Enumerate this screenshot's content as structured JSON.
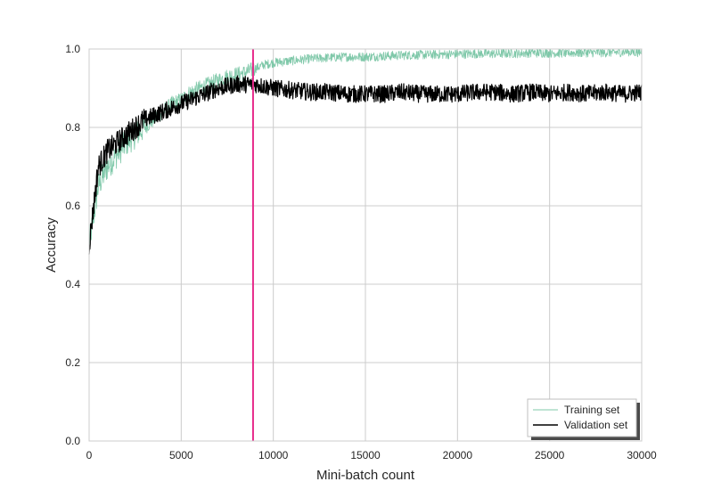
{
  "chart_data": {
    "type": "line",
    "title": "",
    "xlabel": "Mini-batch count",
    "ylabel": "Accuracy",
    "xlim": [
      0,
      30000
    ],
    "ylim": [
      0.0,
      1.0
    ],
    "grid": true,
    "legend_position": "bottom-right",
    "x_ticks": [
      0,
      5000,
      10000,
      15000,
      20000,
      25000,
      30000
    ],
    "x_tick_labels": [
      "0",
      "5000",
      "10000",
      "15000",
      "20000",
      "25000",
      "30000"
    ],
    "y_ticks": [
      0.0,
      0.2,
      0.4,
      0.6,
      0.8,
      1.0
    ],
    "y_tick_labels": [
      "0.0",
      "0.2",
      "0.4",
      "0.6",
      "0.8",
      "1.0"
    ],
    "vertical_marker": {
      "x": 8900,
      "color": "#e7298a"
    },
    "series": [
      {
        "name": "Training set",
        "color": "#7fc8a9",
        "x": [
          0,
          500,
          1000,
          1500,
          2000,
          2500,
          3000,
          3500,
          4000,
          4500,
          5000,
          5500,
          6000,
          6500,
          7000,
          7500,
          8000,
          8500,
          9000,
          9500,
          10000,
          11000,
          12000,
          13000,
          14000,
          15000,
          16000,
          17000,
          18000,
          19000,
          20000,
          21000,
          22000,
          23000,
          24000,
          25000,
          26000,
          27000,
          28000,
          29000,
          30000
        ],
        "values": [
          0.5,
          0.65,
          0.7,
          0.73,
          0.76,
          0.78,
          0.8,
          0.82,
          0.84,
          0.86,
          0.87,
          0.89,
          0.9,
          0.91,
          0.92,
          0.93,
          0.935,
          0.94,
          0.95,
          0.96,
          0.965,
          0.97,
          0.975,
          0.978,
          0.98,
          0.98,
          0.982,
          0.984,
          0.985,
          0.986,
          0.987,
          0.988,
          0.988,
          0.989,
          0.99,
          0.99,
          0.99,
          0.991,
          0.991,
          0.992,
          0.992
        ]
      },
      {
        "name": "Validation set",
        "color": "#000000",
        "x": [
          0,
          500,
          1000,
          1500,
          2000,
          2500,
          3000,
          3500,
          4000,
          4500,
          5000,
          5500,
          6000,
          6500,
          7000,
          7500,
          8000,
          8500,
          9000,
          9500,
          10000,
          11000,
          12000,
          13000,
          14000,
          15000,
          16000,
          17000,
          18000,
          19000,
          20000,
          21000,
          22000,
          23000,
          24000,
          25000,
          26000,
          27000,
          28000,
          29000,
          30000
        ],
        "values": [
          0.5,
          0.7,
          0.74,
          0.76,
          0.78,
          0.8,
          0.82,
          0.83,
          0.84,
          0.85,
          0.86,
          0.87,
          0.88,
          0.89,
          0.9,
          0.905,
          0.91,
          0.91,
          0.91,
          0.905,
          0.9,
          0.895,
          0.89,
          0.89,
          0.885,
          0.885,
          0.885,
          0.89,
          0.885,
          0.885,
          0.885,
          0.89,
          0.89,
          0.885,
          0.89,
          0.885,
          0.89,
          0.885,
          0.89,
          0.885,
          0.89
        ]
      }
    ]
  }
}
